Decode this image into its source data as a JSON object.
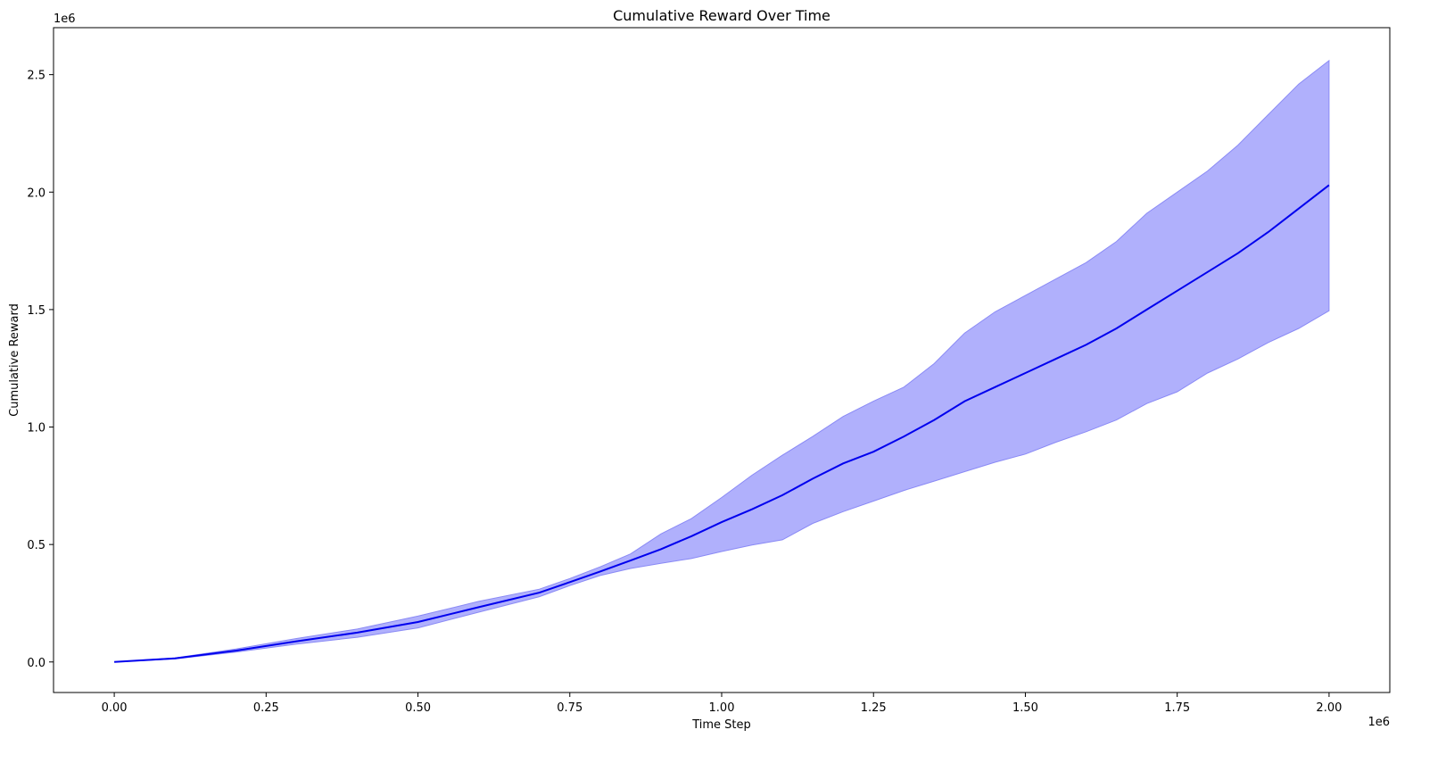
{
  "chart_data": {
    "type": "line",
    "title": "Cumulative Reward Over Time",
    "xlabel": "Time Step",
    "ylabel": "Cumulative Reward",
    "x_offset_text": "1e6",
    "y_offset_text": "1e6",
    "xlim": [
      -100000,
      2100000
    ],
    "ylim": [
      -130000,
      2700000
    ],
    "x_ticks": [
      0,
      250000,
      500000,
      750000,
      1000000,
      1250000,
      1500000,
      1750000,
      2000000
    ],
    "x_tick_labels": [
      "0.00",
      "0.25",
      "0.50",
      "0.75",
      "1.00",
      "1.25",
      "1.50",
      "1.75",
      "2.00"
    ],
    "y_ticks": [
      0,
      500000,
      1000000,
      1500000,
      2000000,
      2500000
    ],
    "y_tick_labels": [
      "0.0",
      "0.5",
      "1.0",
      "1.5",
      "2.0",
      "2.5"
    ],
    "grid": false,
    "legend": "none",
    "colors": {
      "line": "#0000ee",
      "band": "#b0b0fc",
      "band_edge": "#8a8af5"
    },
    "x": [
      0,
      100000,
      200000,
      300000,
      400000,
      500000,
      600000,
      700000,
      750000,
      800000,
      850000,
      900000,
      950000,
      1000000,
      1050000,
      1100000,
      1150000,
      1200000,
      1250000,
      1300000,
      1350000,
      1400000,
      1450000,
      1500000,
      1550000,
      1600000,
      1650000,
      1700000,
      1750000,
      1800000,
      1850000,
      1900000,
      1950000,
      2000000
    ],
    "series": [
      {
        "role": "mean",
        "values": [
          0,
          15000,
          48000,
          88000,
          125000,
          170000,
          233000,
          295000,
          340000,
          385000,
          432000,
          480000,
          535000,
          595000,
          650000,
          710000,
          780000,
          845000,
          895000,
          960000,
          1030000,
          1110000,
          1170000,
          1230000,
          1290000,
          1350000,
          1420000,
          1500000,
          1580000,
          1660000,
          1740000,
          1830000,
          1930000,
          2030000
        ]
      },
      {
        "role": "upper",
        "values": [
          0,
          17000,
          55000,
          100000,
          140000,
          195000,
          258000,
          310000,
          355000,
          405000,
          460000,
          545000,
          610000,
          700000,
          795000,
          880000,
          960000,
          1045000,
          1110000,
          1170000,
          1270000,
          1400000,
          1490000,
          1560000,
          1630000,
          1700000,
          1790000,
          1910000,
          2000000,
          2090000,
          2200000,
          2330000,
          2460000,
          2560000
        ]
      },
      {
        "role": "lower",
        "values": [
          0,
          13000,
          42000,
          76000,
          105000,
          145000,
          212000,
          278000,
          325000,
          368000,
          398000,
          420000,
          440000,
          470000,
          498000,
          520000,
          590000,
          640000,
          685000,
          730000,
          770000,
          810000,
          850000,
          885000,
          935000,
          980000,
          1030000,
          1100000,
          1150000,
          1230000,
          1290000,
          1360000,
          1420000,
          1495000
        ]
      }
    ]
  }
}
